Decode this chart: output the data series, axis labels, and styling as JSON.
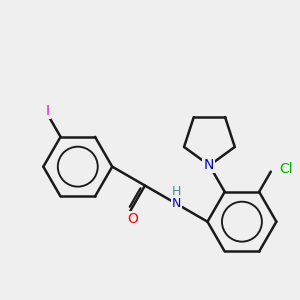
{
  "background_color": "#efefef",
  "bond_color": "#1a1a1a",
  "bond_width": 1.8,
  "atom_colors": {
    "I": "#ee00ee",
    "O": "#ff0000",
    "N": "#0000cc",
    "NH": "#4a8a8a",
    "Cl": "#00aa00",
    "C": "#1a1a1a",
    "H": "#888888"
  }
}
